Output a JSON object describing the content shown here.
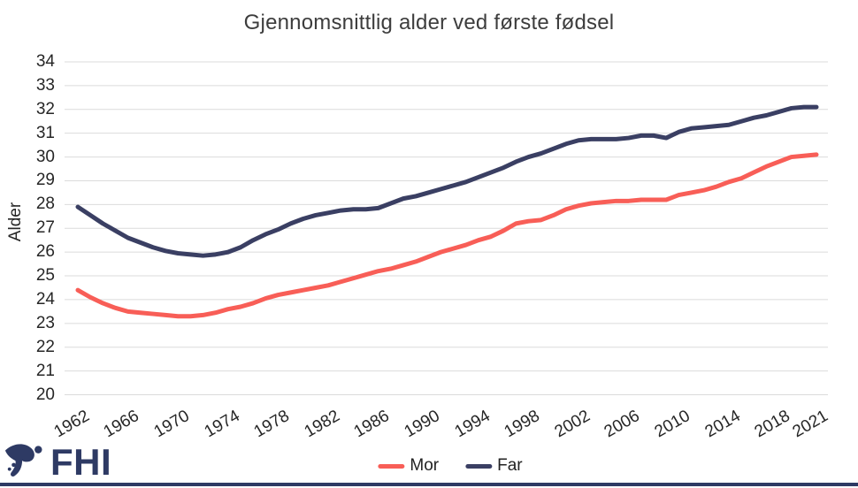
{
  "chart": {
    "title": "Gjennomsnittlig alder ved første fødsel",
    "y_axis_label": "Alder"
  },
  "footer": {
    "logo_text": "FHI",
    "logo_color": "#2E3A64",
    "bar_color": "#2E3A64"
  },
  "chart_data": {
    "type": "line",
    "title": "Gjennomsnittlig alder ved første fødsel",
    "xlabel": "",
    "ylabel": "Alder",
    "ylim": [
      20,
      34
    ],
    "ytick_step": 1,
    "xlim": [
      1962,
      2021
    ],
    "xticks": [
      1962,
      1966,
      1970,
      1974,
      1978,
      1982,
      1986,
      1990,
      1994,
      1998,
      2002,
      2006,
      2010,
      2014,
      2018,
      2021
    ],
    "grid": "horizontal",
    "gridline_color": "#DBDBDB",
    "legend_position": "bottom",
    "background": "#FFFFFF",
    "x": [
      1962,
      1963,
      1964,
      1965,
      1966,
      1967,
      1968,
      1969,
      1970,
      1971,
      1972,
      1973,
      1974,
      1975,
      1976,
      1977,
      1978,
      1979,
      1980,
      1981,
      1982,
      1983,
      1984,
      1985,
      1986,
      1987,
      1988,
      1989,
      1990,
      1991,
      1992,
      1993,
      1994,
      1995,
      1996,
      1997,
      1998,
      1999,
      2000,
      2001,
      2002,
      2003,
      2004,
      2005,
      2006,
      2007,
      2008,
      2009,
      2010,
      2011,
      2012,
      2013,
      2014,
      2015,
      2016,
      2017,
      2018,
      2019,
      2020,
      2021
    ],
    "series": [
      {
        "name": "Mor",
        "color": "#F85E57",
        "values": [
          24.4,
          24.1,
          23.85,
          23.65,
          23.5,
          23.45,
          23.4,
          23.35,
          23.3,
          23.3,
          23.35,
          23.45,
          23.6,
          23.7,
          23.85,
          24.05,
          24.2,
          24.3,
          24.4,
          24.5,
          24.6,
          24.75,
          24.9,
          25.05,
          25.2,
          25.3,
          25.45,
          25.6,
          25.8,
          26.0,
          26.15,
          26.3,
          26.5,
          26.65,
          26.9,
          27.2,
          27.3,
          27.35,
          27.55,
          27.8,
          27.95,
          28.05,
          28.1,
          28.15,
          28.15,
          28.2,
          28.2,
          28.2,
          28.4,
          28.5,
          28.6,
          28.75,
          28.95,
          29.1,
          29.35,
          29.6,
          29.8,
          30.0,
          30.05,
          30.1
        ]
      },
      {
        "name": "Far",
        "color": "#3A3F63",
        "values": [
          27.9,
          27.55,
          27.2,
          26.9,
          26.6,
          26.4,
          26.2,
          26.05,
          25.95,
          25.9,
          25.85,
          25.9,
          26.0,
          26.2,
          26.5,
          26.75,
          26.95,
          27.2,
          27.4,
          27.55,
          27.65,
          27.75,
          27.8,
          27.8,
          27.85,
          28.05,
          28.25,
          28.35,
          28.5,
          28.65,
          28.8,
          28.95,
          29.15,
          29.35,
          29.55,
          29.8,
          30.0,
          30.15,
          30.35,
          30.55,
          30.7,
          30.75,
          30.75,
          30.75,
          30.8,
          30.9,
          30.9,
          30.8,
          31.05,
          31.2,
          31.25,
          31.3,
          31.35,
          31.5,
          31.65,
          31.75,
          31.9,
          32.05,
          32.1,
          32.1
        ]
      }
    ]
  }
}
